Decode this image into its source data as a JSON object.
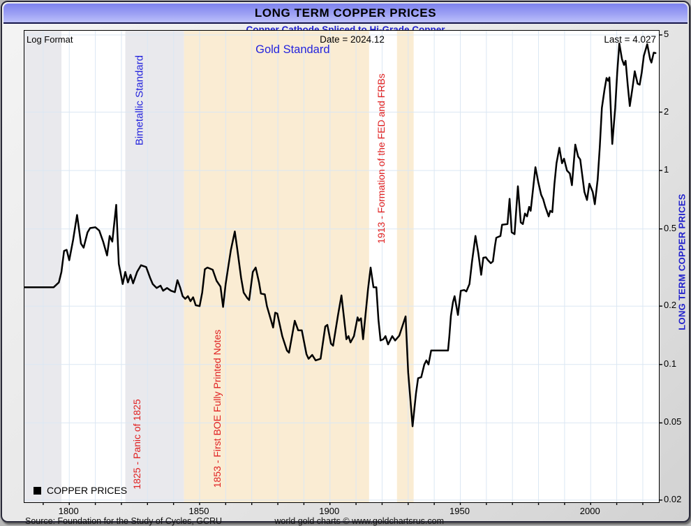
{
  "window": {
    "title": "LONG TERM COPPER PRICES",
    "subtitle": "Copper Cathode Spliced to Hi-Grade Copper"
  },
  "plot_labels": {
    "log_format": "Log Format",
    "date": "Date = 2024.12",
    "last": "Last = 4.027",
    "right_axis": "LONG TERM COPPER PRICES"
  },
  "legend": {
    "label": "COPPER PRICES",
    "swatch_color": "#000000"
  },
  "footer": {
    "source": "Source: Foundation for the Study of Cycles, GCRU",
    "credit": "world gold charts © www.goldchartsrus.com"
  },
  "colors": {
    "titlebar_top": "#7d82ee",
    "titlebar_bottom": "#bcc0fa",
    "subtitle_text": "#2121cc",
    "line": "#000000",
    "gridline": "#dbe7f3",
    "band_gray": "#e9e9ed",
    "band_tan": "#faecd3",
    "annotation_red": "#e02020",
    "annotation_blue": "#2424dd"
  },
  "chart_data": {
    "type": "line",
    "title": "LONG TERM COPPER PRICES",
    "subtitle": "Copper Cathode Spliced to Hi-Grade Copper",
    "y_scale": "log",
    "y_ticks": [
      5,
      2,
      1,
      0.5,
      0.2,
      0.1,
      0.05,
      0.02
    ],
    "y_range": [
      0.02,
      5
    ],
    "x_range": [
      1782.8,
      2025.5
    ],
    "x_tick_labels": [
      1800,
      1850,
      1900,
      1950,
      2000
    ],
    "x_gridline_step_years": 10,
    "grid": true,
    "legend_position": "bottom-left",
    "last_value": 4.027,
    "last_date": "2024.12",
    "bands": [
      {
        "id": "pre-1797-gray",
        "from": 1782.8,
        "to": 1797,
        "color": "#e9e9ed"
      },
      {
        "id": "bimetallic-gray",
        "from": 1821.5,
        "to": 1844,
        "color": "#e9e9ed"
      },
      {
        "id": "gold-standard",
        "from": 1844,
        "to": 1915,
        "color": "#faecd3"
      },
      {
        "id": "gold-return",
        "from": 1925.7,
        "to": 1932.1,
        "color": "#faecd3"
      }
    ],
    "annotations": [
      {
        "id": "bimetallic",
        "text": "Bimetallic Standard",
        "style": "blue",
        "rotated": true,
        "year": 1828.2,
        "value": 2.3
      },
      {
        "id": "gold-standard",
        "text": "Gold Standard",
        "style": "gold",
        "rotated": false,
        "year": 1885.7,
        "value": 4.03
      },
      {
        "id": "panic-1825",
        "text": "1825 - Panic of 1825",
        "style": "red",
        "rotated": true,
        "year": 1827.3,
        "value": 0.0388
      },
      {
        "id": "boe-1853",
        "text": "1853 - First BOE Fully Printed Notes",
        "style": "red",
        "rotated": true,
        "year": 1858.1,
        "value": 0.0592
      },
      {
        "id": "fed-1913",
        "text": "1913 - Formation of the FED and FRBs",
        "style": "red",
        "rotated": true,
        "year": 1921,
        "value": 1.152
      }
    ],
    "series": [
      {
        "name": "COPPER PRICES",
        "color": "#000000",
        "points": [
          [
            1783,
            0.25
          ],
          [
            1790,
            0.25
          ],
          [
            1794,
            0.25
          ],
          [
            1796,
            0.265
          ],
          [
            1797,
            0.3
          ],
          [
            1798,
            0.385
          ],
          [
            1799,
            0.39
          ],
          [
            1800,
            0.345
          ],
          [
            1801.5,
            0.44
          ],
          [
            1803,
            0.59
          ],
          [
            1804.5,
            0.42
          ],
          [
            1805.5,
            0.4
          ],
          [
            1807,
            0.48
          ],
          [
            1808,
            0.505
          ],
          [
            1810,
            0.51
          ],
          [
            1811.5,
            0.49
          ],
          [
            1813,
            0.43
          ],
          [
            1814.5,
            0.365
          ],
          [
            1815.5,
            0.46
          ],
          [
            1816.5,
            0.43
          ],
          [
            1818,
            0.665
          ],
          [
            1819,
            0.33
          ],
          [
            1820.5,
            0.26
          ],
          [
            1821.5,
            0.3
          ],
          [
            1822.5,
            0.265
          ],
          [
            1823.5,
            0.29
          ],
          [
            1824.5,
            0.262
          ],
          [
            1826,
            0.3
          ],
          [
            1827.5,
            0.325
          ],
          [
            1829.5,
            0.318
          ],
          [
            1831,
            0.28
          ],
          [
            1832,
            0.26
          ],
          [
            1833.5,
            0.248
          ],
          [
            1835,
            0.255
          ],
          [
            1836,
            0.24
          ],
          [
            1837.5,
            0.248
          ],
          [
            1839,
            0.24
          ],
          [
            1840.5,
            0.236
          ],
          [
            1841.5,
            0.272
          ],
          [
            1842.5,
            0.25
          ],
          [
            1843.5,
            0.225
          ],
          [
            1844.5,
            0.218
          ],
          [
            1845.5,
            0.225
          ],
          [
            1846.5,
            0.212
          ],
          [
            1847.5,
            0.222
          ],
          [
            1848.5,
            0.202
          ],
          [
            1850,
            0.2
          ],
          [
            1851,
            0.235
          ],
          [
            1852,
            0.31
          ],
          [
            1853,
            0.316
          ],
          [
            1855,
            0.308
          ],
          [
            1856.5,
            0.27
          ],
          [
            1858,
            0.252
          ],
          [
            1859,
            0.198
          ],
          [
            1860,
            0.26
          ],
          [
            1861,
            0.32
          ],
          [
            1862,
            0.39
          ],
          [
            1863.5,
            0.485
          ],
          [
            1864.5,
            0.39
          ],
          [
            1865.9,
            0.28
          ],
          [
            1866.9,
            0.235
          ],
          [
            1868.3,
            0.22
          ],
          [
            1869,
            0.215
          ],
          [
            1870.4,
            0.3
          ],
          [
            1871.5,
            0.316
          ],
          [
            1872.8,
            0.265
          ],
          [
            1873.5,
            0.232
          ],
          [
            1875,
            0.23
          ],
          [
            1875.8,
            0.2
          ],
          [
            1878.2,
            0.155
          ],
          [
            1879,
            0.185
          ],
          [
            1879.8,
            0.183
          ],
          [
            1881.7,
            0.14
          ],
          [
            1883.5,
            0.118
          ],
          [
            1884.3,
            0.115
          ],
          [
            1886.5,
            0.168
          ],
          [
            1887.8,
            0.15
          ],
          [
            1889.2,
            0.15
          ],
          [
            1891,
            0.113
          ],
          [
            1891.8,
            0.107
          ],
          [
            1893.2,
            0.112
          ],
          [
            1894.5,
            0.105
          ],
          [
            1896.4,
            0.107
          ],
          [
            1898.2,
            0.157
          ],
          [
            1899,
            0.16
          ],
          [
            1900.4,
            0.128
          ],
          [
            1901.2,
            0.125
          ],
          [
            1903.1,
            0.18
          ],
          [
            1904.4,
            0.227
          ],
          [
            1906.3,
            0.135
          ],
          [
            1907.1,
            0.14
          ],
          [
            1907.9,
            0.13
          ],
          [
            1909.2,
            0.14
          ],
          [
            1910.6,
            0.175
          ],
          [
            1911.1,
            0.168
          ],
          [
            1911.9,
            0.173
          ],
          [
            1912.7,
            0.135
          ],
          [
            1914.6,
            0.245
          ],
          [
            1915.6,
            0.316
          ],
          [
            1916.7,
            0.25
          ],
          [
            1917.8,
            0.25
          ],
          [
            1918.6,
            0.17
          ],
          [
            1919.4,
            0.133
          ],
          [
            1920.5,
            0.135
          ],
          [
            1921.3,
            0.14
          ],
          [
            1922.3,
            0.127
          ],
          [
            1923.9,
            0.14
          ],
          [
            1925,
            0.133
          ],
          [
            1926.6,
            0.141
          ],
          [
            1929,
            0.177
          ],
          [
            1930,
            0.091
          ],
          [
            1931.7,
            0.048
          ],
          [
            1933,
            0.071
          ],
          [
            1933.8,
            0.085
          ],
          [
            1935,
            0.086
          ],
          [
            1936.2,
            0.1
          ],
          [
            1937,
            0.105
          ],
          [
            1937.8,
            0.1
          ],
          [
            1938.8,
            0.118
          ],
          [
            1944,
            0.118
          ],
          [
            1945.3,
            0.118
          ],
          [
            1945.8,
            0.14
          ],
          [
            1946.4,
            0.178
          ],
          [
            1947.2,
            0.21
          ],
          [
            1947.8,
            0.225
          ],
          [
            1949.1,
            0.18
          ],
          [
            1950.2,
            0.24
          ],
          [
            1951.5,
            0.242
          ],
          [
            1952.3,
            0.238
          ],
          [
            1953.5,
            0.26
          ],
          [
            1954.5,
            0.34
          ],
          [
            1955.8,
            0.46
          ],
          [
            1956.9,
            0.375
          ],
          [
            1958,
            0.29
          ],
          [
            1958.8,
            0.355
          ],
          [
            1959.8,
            0.357
          ],
          [
            1960.6,
            0.345
          ],
          [
            1961.7,
            0.333
          ],
          [
            1962.5,
            0.34
          ],
          [
            1963.3,
            0.41
          ],
          [
            1963.8,
            0.45
          ],
          [
            1965.4,
            0.46
          ],
          [
            1966,
            0.525
          ],
          [
            1968.1,
            0.53
          ],
          [
            1968.9,
            0.715
          ],
          [
            1969.7,
            0.48
          ],
          [
            1970.8,
            0.47
          ],
          [
            1972.1,
            0.83
          ],
          [
            1973.2,
            0.54
          ],
          [
            1974,
            0.53
          ],
          [
            1974.8,
            0.6
          ],
          [
            1975.6,
            0.58
          ],
          [
            1976.4,
            0.65
          ],
          [
            1977,
            0.62
          ],
          [
            1978.8,
            1.04
          ],
          [
            1979.9,
            0.87
          ],
          [
            1981,
            0.75
          ],
          [
            1981.8,
            0.71
          ],
          [
            1982.6,
            0.65
          ],
          [
            1983.9,
            0.58
          ],
          [
            1984.5,
            0.62
          ],
          [
            1985.3,
            0.61
          ],
          [
            1986.1,
            0.85
          ],
          [
            1986.9,
            1.09
          ],
          [
            1988,
            1.31
          ],
          [
            1989,
            1.09
          ],
          [
            1989.8,
            1.15
          ],
          [
            1990.9,
            1.0
          ],
          [
            1992,
            0.965
          ],
          [
            1992.8,
            0.84
          ],
          [
            1994.1,
            1.36
          ],
          [
            1995.2,
            1.18
          ],
          [
            1996,
            1.14
          ],
          [
            1996.8,
            0.94
          ],
          [
            1997.6,
            0.775
          ],
          [
            1998.6,
            0.705
          ],
          [
            1999.5,
            0.855
          ],
          [
            2000.8,
            0.775
          ],
          [
            2001.6,
            0.67
          ],
          [
            2002.7,
            0.9
          ],
          [
            2003.5,
            1.32
          ],
          [
            2004.3,
            2.1
          ],
          [
            2005.3,
            2.6
          ],
          [
            2006.1,
            3.0
          ],
          [
            2006.7,
            2.9
          ],
          [
            2007.2,
            3.02
          ],
          [
            2008.3,
            1.37
          ],
          [
            2009.4,
            2.1
          ],
          [
            2010.2,
            3.2
          ],
          [
            2011,
            4.52
          ],
          [
            2012,
            3.75
          ],
          [
            2012.8,
            3.5
          ],
          [
            2013.4,
            3.68
          ],
          [
            2014.2,
            2.77
          ],
          [
            2015,
            2.15
          ],
          [
            2016.1,
            2.7
          ],
          [
            2016.9,
            3.25
          ],
          [
            2018,
            2.8
          ],
          [
            2018.8,
            2.77
          ],
          [
            2019.6,
            3.2
          ],
          [
            2020.4,
            3.9
          ],
          [
            2021.7,
            4.48
          ],
          [
            2022.8,
            3.75
          ],
          [
            2023.3,
            3.6
          ],
          [
            2024.2,
            4.05
          ],
          [
            2024.9,
            4.03
          ]
        ]
      }
    ]
  }
}
